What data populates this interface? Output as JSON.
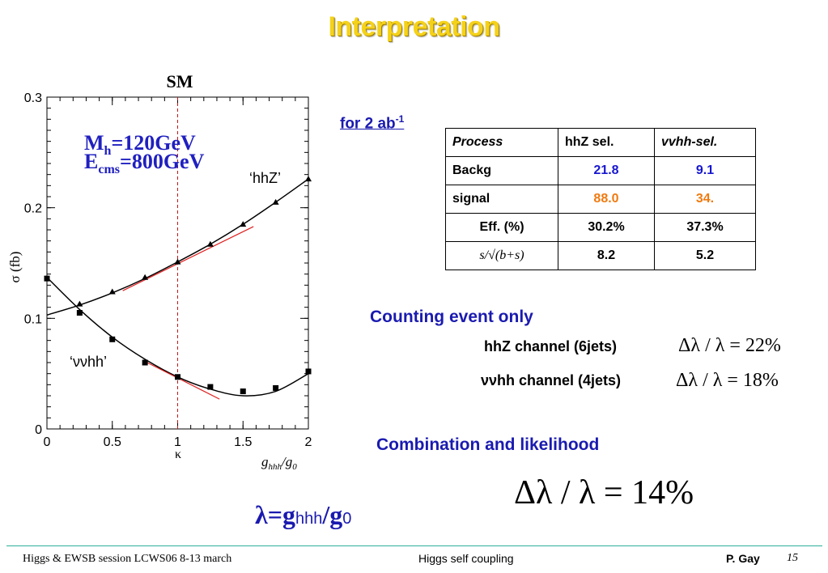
{
  "title": "Interpretation",
  "chart_data": {
    "type": "line",
    "title": "SM",
    "xlabel": "κ",
    "xlabel2": "g_hhh/g_0",
    "xlabel2_main": "g",
    "xlabel2_sub": "hhh",
    "xlabel2_tail": "/g",
    "xlabel2_tailsub": "0",
    "ylabel": "σ (fb)",
    "xlim": [
      0,
      2
    ],
    "ylim": [
      0,
      0.3
    ],
    "x_ticks": [
      "0",
      "0.5",
      "1",
      "1.5",
      "2"
    ],
    "y_ticks": [
      "0",
      "0.1",
      "0.2",
      "0.3"
    ],
    "annotation_mh": "M",
    "annotation_mh_sub": "h",
    "annotation_mh_val": "=120GeV",
    "annotation_e": "E",
    "annotation_e_sub": "cms",
    "annotation_e_val": "=800GeV",
    "series": [
      {
        "name": "‘hhZ’",
        "marker": "triangle",
        "points": [
          [
            0.25,
            0.113
          ],
          [
            0.5,
            0.124
          ],
          [
            0.75,
            0.137
          ],
          [
            1.0,
            0.151
          ],
          [
            1.25,
            0.167
          ],
          [
            1.5,
            0.185
          ],
          [
            1.75,
            0.205
          ],
          [
            2.0,
            0.226
          ]
        ],
        "fit": [
          [
            0,
            0.103
          ],
          [
            0.25,
            0.112
          ],
          [
            0.5,
            0.123
          ],
          [
            0.75,
            0.136
          ],
          [
            1.0,
            0.151
          ],
          [
            1.25,
            0.167
          ],
          [
            1.5,
            0.185
          ],
          [
            1.75,
            0.205
          ],
          [
            2.0,
            0.226
          ]
        ],
        "tangent": [
          [
            0.58,
            0.125
          ],
          [
            1.58,
            0.183
          ]
        ]
      },
      {
        "name": "‘ννhh’",
        "marker": "square",
        "points": [
          [
            0,
            0.136
          ],
          [
            0.25,
            0.105
          ],
          [
            0.5,
            0.081
          ],
          [
            0.75,
            0.06
          ],
          [
            1.0,
            0.047
          ],
          [
            1.25,
            0.038
          ],
          [
            1.5,
            0.034
          ],
          [
            1.75,
            0.037
          ],
          [
            2.0,
            0.052
          ]
        ],
        "fit": [
          [
            0,
            0.137
          ],
          [
            0.25,
            0.108
          ],
          [
            0.5,
            0.083
          ],
          [
            0.75,
            0.063
          ],
          [
            1.0,
            0.047
          ],
          [
            1.25,
            0.036
          ],
          [
            1.5,
            0.03
          ],
          [
            1.75,
            0.034
          ],
          [
            2.0,
            0.05
          ]
        ],
        "tangent": [
          [
            0.75,
            0.061
          ],
          [
            1.32,
            0.027
          ]
        ]
      }
    ],
    "vline_x": 1.0
  },
  "luminosity": {
    "text": "for 2 ab",
    "exp": "-1"
  },
  "table": {
    "headers": [
      "Process",
      "hhZ sel.",
      "vvhh-sel."
    ],
    "rows": [
      {
        "label": "Backg",
        "hhz": "21.8",
        "vvhh": "9.1"
      },
      {
        "label": "signal",
        "hhz": "88.0",
        "vvhh": "34."
      },
      {
        "label": "Eff. (%)",
        "hhz": "30.2%",
        "vvhh": "37.3%"
      },
      {
        "label": "s/√(b+s)",
        "hhz": "8.2",
        "vvhh": "5.2"
      }
    ]
  },
  "counting_title": "Counting event only",
  "channels": [
    {
      "label": "hhZ channel (6jets)",
      "formula": "Δλ / λ = 22%"
    },
    {
      "label": "ννhh channel (4jets)",
      "formula": "Δλ / λ = 18%"
    }
  ],
  "combination_title": "Combination and likelihood",
  "combined_formula": "Δλ / λ = 14%",
  "lambda_def": {
    "lhs": "λ=g",
    "sub": "hhh",
    "rhs": "/g",
    "sub2": "0"
  },
  "footer": {
    "left": "Higgs & EWSB session LCWS06 8-13 march",
    "center": "Higgs self coupling",
    "author": "P.  Gay",
    "page": "15"
  },
  "colors": {
    "title": "#f5d21a",
    "heading_blue": "#1a1ab0",
    "value_blue": "#1616d0",
    "value_orange": "#f07a10",
    "tangent": "#e02020",
    "footer_rule": "#2db09a"
  }
}
